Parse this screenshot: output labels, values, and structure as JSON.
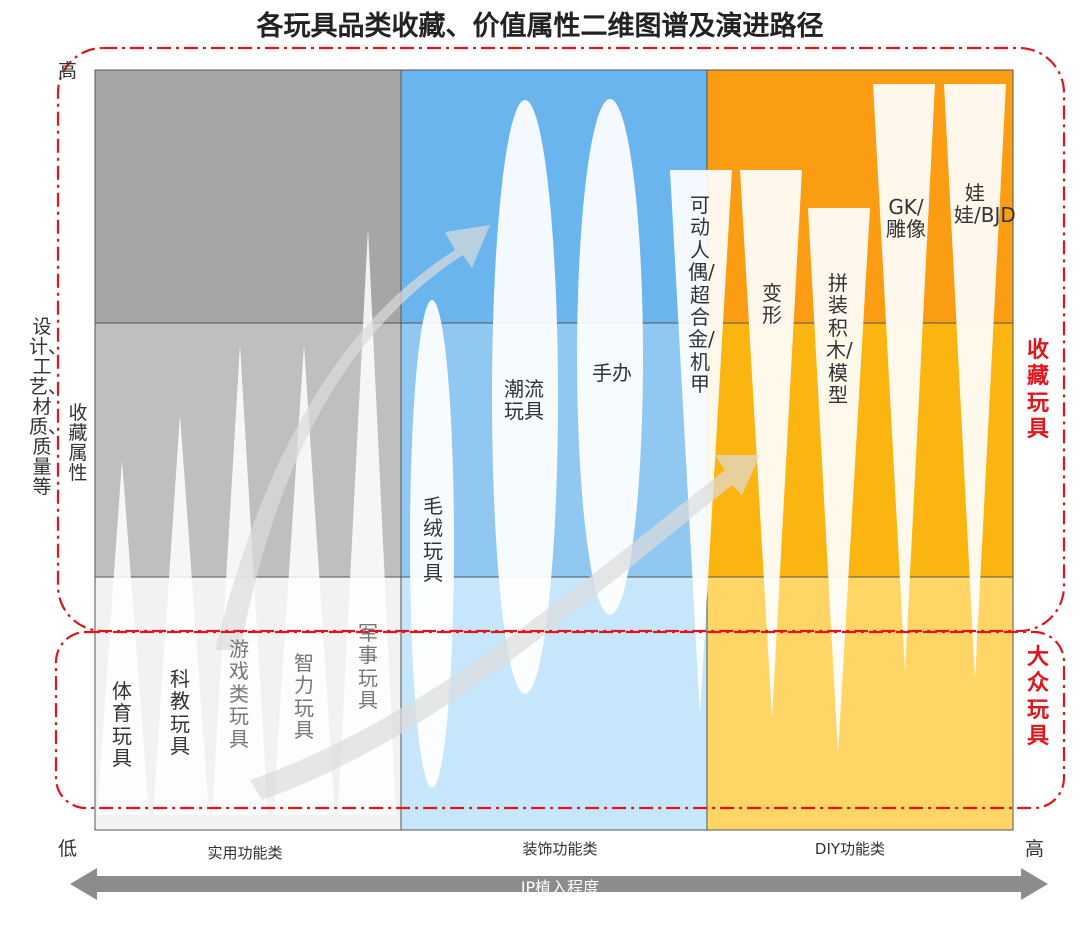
{
  "title": "各玩具品类收藏、价值属性二维图谱及演进路径",
  "axes": {
    "y_high": "高",
    "y_low": "低",
    "x_high": "高",
    "y_title_outer": "设计、工艺、材质、质量等",
    "y_title_inner": "收藏属性",
    "x_title": "IP植入程度"
  },
  "categories": {
    "practical": "实用功能类",
    "decorative": "装饰功能类",
    "diy": "DIY功能类"
  },
  "groups": {
    "collectible": "收藏玩具",
    "mass": "大众玩具"
  },
  "toys": {
    "sports": "体育玩具",
    "education": "科教玩具",
    "game": "游戏类玩具",
    "puzzle": "智力玩具",
    "military": "军事玩具",
    "plush": "毛绒玩具",
    "trendy": "潮流玩具",
    "figure": "手办",
    "action_figure": "可动人偶/超合金/机甲",
    "transform": "变形",
    "blocks": "拼装积木/模型",
    "gk": "GK/雕像",
    "doll": "娃娃/BJD"
  },
  "colors": {
    "practical_top": "#a6a6a6",
    "practical_mid": "#bfbfbf",
    "practical_low": "#f2f2f2",
    "decorative_top": "#6ab5ee",
    "decorative_mid": "#90c8f2",
    "decorative_low": "#c6e6fb",
    "diy_top": "#fa9d12",
    "diy_mid": "#fbb510",
    "diy_low": "#ffd666",
    "dash_red": "#e0151c"
  }
}
